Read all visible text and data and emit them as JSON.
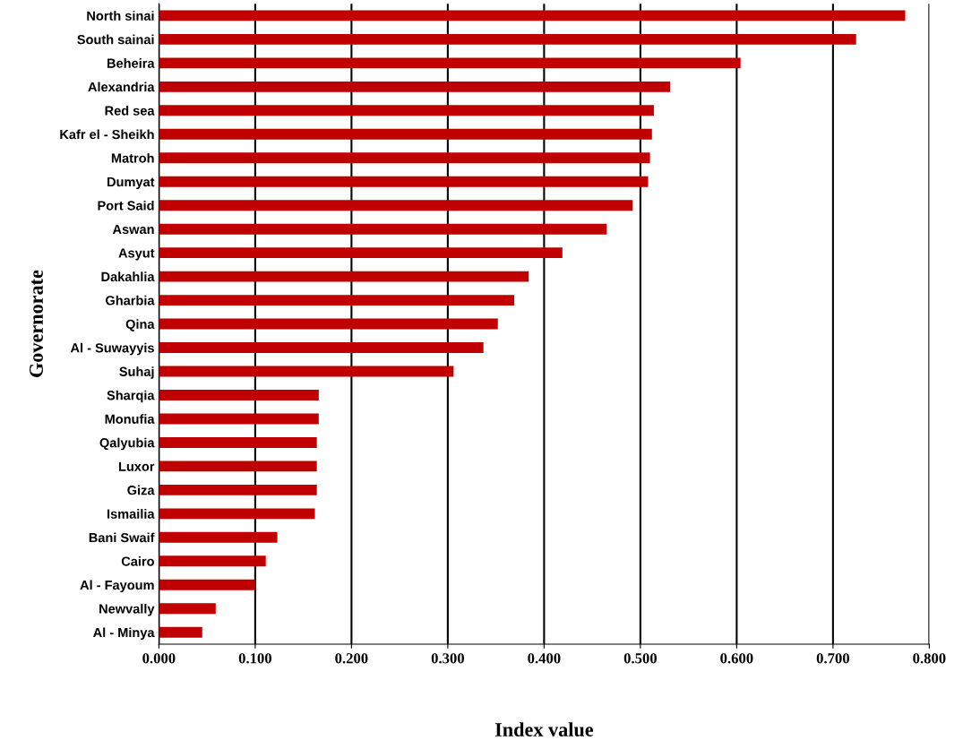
{
  "chart_data": {
    "type": "bar",
    "orientation": "horizontal",
    "xlabel": "Index value",
    "ylabel": "Governorate",
    "categories": [
      "North sinai",
      "South sainai",
      "Beheira",
      "Alexandria",
      "Red sea",
      "Kafr el - Sheikh",
      "Matroh",
      "Dumyat",
      "Port Said",
      "Aswan",
      "Asyut",
      "Dakahlia",
      "Gharbia",
      "Qina",
      "Al - Suwayyis",
      "Suhaj",
      "Sharqia",
      "Monufia",
      "Qalyubia",
      "Luxor",
      "Giza",
      "Ismailia",
      "Bani Swaif",
      "Cairo",
      "Al - Fayoum",
      "Newvally",
      "Al - Minya"
    ],
    "values": [
      0.775,
      0.724,
      0.604,
      0.531,
      0.514,
      0.512,
      0.51,
      0.508,
      0.492,
      0.465,
      0.419,
      0.384,
      0.369,
      0.352,
      0.337,
      0.306,
      0.166,
      0.166,
      0.164,
      0.164,
      0.164,
      0.162,
      0.123,
      0.111,
      0.1,
      0.059,
      0.045
    ],
    "color": "#c00000",
    "xlim": [
      0,
      0.8
    ],
    "xticks": [
      {
        "value": 0,
        "label": "0.000"
      },
      {
        "value": 0.1,
        "label": "0.100"
      },
      {
        "value": 0.2,
        "label": "0.200"
      },
      {
        "value": 0.3,
        "label": "0.300"
      },
      {
        "value": 0.4,
        "label": "0.400"
      },
      {
        "value": 0.5,
        "label": "0.500"
      },
      {
        "value": 0.6,
        "label": "0.600"
      },
      {
        "value": 0.7,
        "label": "0.700"
      },
      {
        "value": 0.8,
        "label": "0.800"
      }
    ],
    "grid": "x"
  }
}
